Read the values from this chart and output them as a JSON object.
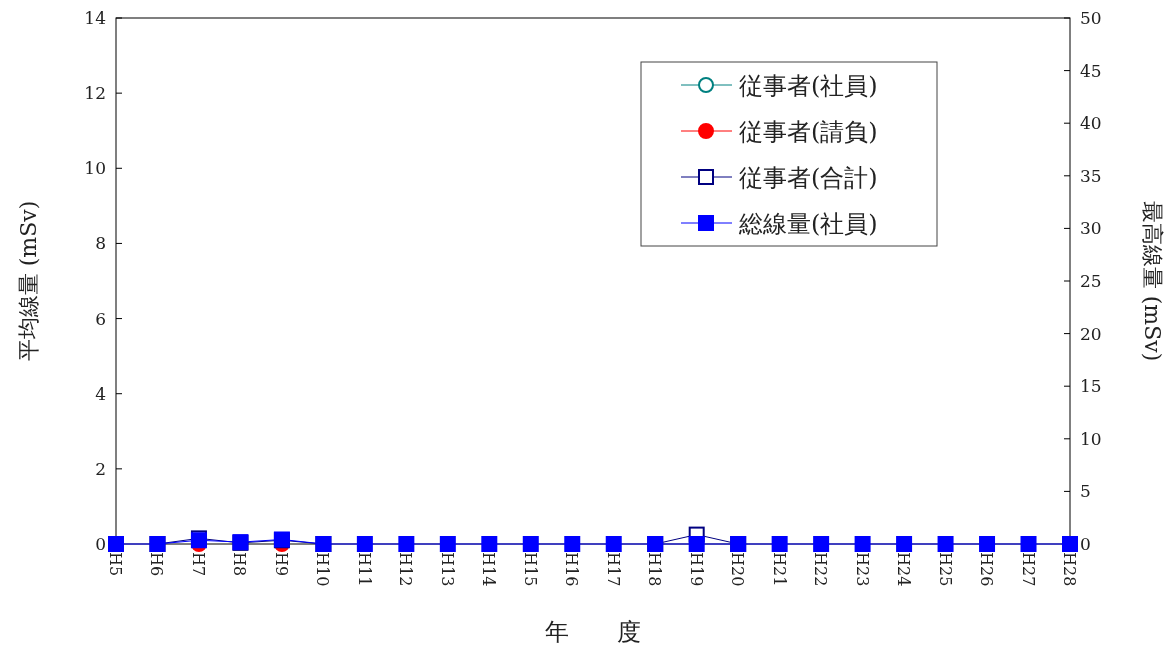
{
  "chart_data": {
    "type": "line",
    "xlabel": "年　　度",
    "ylabel": "平均線量 (mSv)",
    "y2label": "最高線量 (mSv)",
    "categories": [
      "H5",
      "H6",
      "H7",
      "H8",
      "H9",
      "H10",
      "H11",
      "H12",
      "H13",
      "H14",
      "H15",
      "H16",
      "H17",
      "H18",
      "H19",
      "H20",
      "H21",
      "H22",
      "H23",
      "H24",
      "H25",
      "H26",
      "H27",
      "H28"
    ],
    "ylim": [
      0,
      14
    ],
    "yticks": [
      0,
      2,
      4,
      6,
      8,
      10,
      12,
      14
    ],
    "y2lim": [
      0,
      50
    ],
    "y2ticks": [
      0,
      5,
      10,
      15,
      20,
      25,
      30,
      35,
      40,
      45,
      50
    ],
    "legend": "top right",
    "grid": false,
    "series": [
      {
        "name": "従事者(社員)",
        "color": "#008080",
        "marker": "circle",
        "values": [
          null,
          null,
          null,
          null,
          null,
          null,
          null,
          null,
          null,
          null,
          null,
          null,
          null,
          null,
          null,
          null,
          null,
          null,
          null,
          null,
          null,
          null,
          null,
          null
        ]
      },
      {
        "name": "従事者(請負)",
        "color": "#ff0000",
        "marker": "circle",
        "values": [
          null,
          null,
          0,
          null,
          0,
          null,
          null,
          null,
          null,
          null,
          null,
          null,
          null,
          null,
          null,
          null,
          null,
          null,
          null,
          null,
          null,
          null,
          null,
          null
        ]
      },
      {
        "name": "従事者(合計)",
        "color": "#000080",
        "marker": "square",
        "values": [
          null,
          0,
          0.15,
          0.03,
          0.1,
          0,
          null,
          null,
          null,
          null,
          null,
          null,
          null,
          0,
          0.25,
          0,
          null,
          null,
          null,
          null,
          null,
          null,
          null,
          null
        ]
      },
      {
        "name": "総線量(社員)",
        "color": "#0000ff",
        "marker": "square",
        "values": [
          0,
          0,
          0.1,
          0.05,
          0.12,
          0,
          0,
          0,
          0,
          0,
          0,
          0,
          0,
          0,
          0,
          0,
          0,
          0,
          0,
          0,
          0,
          0,
          0,
          0
        ]
      }
    ]
  }
}
